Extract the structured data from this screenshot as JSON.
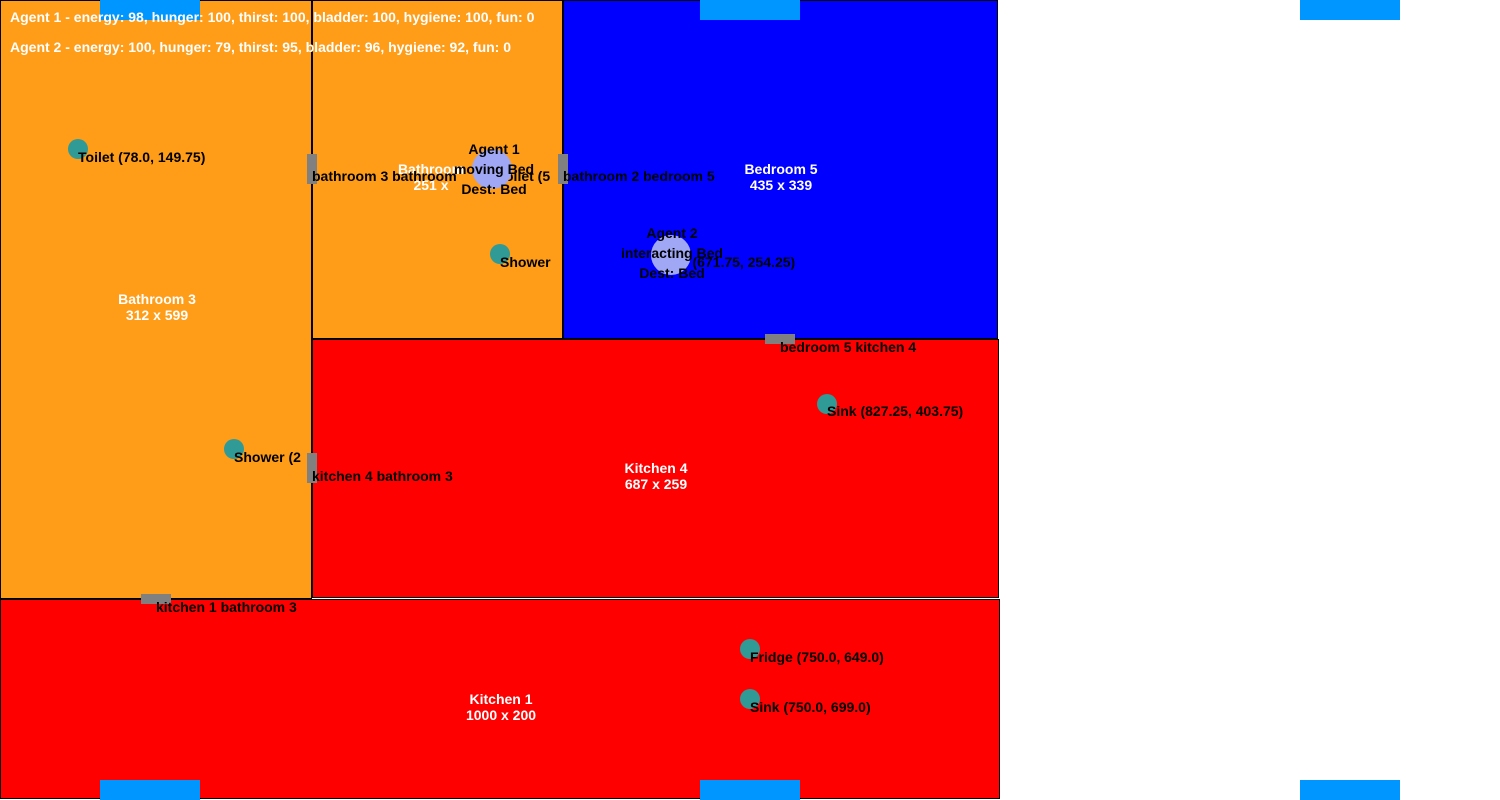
{
  "status": [
    "Agent 1 - energy: 98, hunger: 100, thirst: 100, bladder: 100, hygiene: 100, fun: 0",
    "Agent 2 - energy: 100, hunger: 79, thirst: 95, bladder: 96, hygiene: 92, fun: 0"
  ],
  "rooms": {
    "bathroom3": {
      "name": "Bathroom 3",
      "size": "312 x 599"
    },
    "bathroom2": {
      "name": "Bathroom",
      "size": "251 x"
    },
    "bedroom5": {
      "name": "Bedroom 5",
      "size": "435 x 339"
    },
    "kitchen4": {
      "name": "Kitchen 4",
      "size": "687 x 259"
    },
    "kitchen1": {
      "name": "Kitchen 1",
      "size": "1000 x 200"
    }
  },
  "doors": {
    "bath3_bath2": "bathroom 3 bathroom",
    "bath2_bed5": "bathroom 2 bedroom 5",
    "bed5_kit4": "bedroom 5 kitchen 4",
    "kit4_bath3": "kitchen 4 bathroom 3",
    "kit1_bath3": "kitchen 1 bathroom 3"
  },
  "objects": {
    "toilet3": "Toilet (78.0, 149.75)",
    "shower3": "Shower (2",
    "toilet2": "oilet (5",
    "shower2": "Shower",
    "bed5": "d (671.75, 254.25)",
    "sink_fridge4": "Sink (827.25, 403.75)",
    "fridge1": "Fridge (750.0, 649.0)",
    "sink1": "Sink (750.0, 699.0)"
  },
  "agents": {
    "agent1": {
      "name": "Agent 1",
      "state": "moving Bed",
      "dest": "Dest: Bed"
    },
    "agent2": {
      "name": "Agent 2",
      "state": "interacting Bed",
      "dest": "Dest: Bed"
    }
  },
  "colors": {
    "bathroom": "#ff9c18",
    "bedroom": "#0000ff",
    "kitchen": "#ff0000",
    "object": "#2f9a96",
    "agent": "#a0a8f5",
    "door": "#808080",
    "window": "#0096ff"
  }
}
